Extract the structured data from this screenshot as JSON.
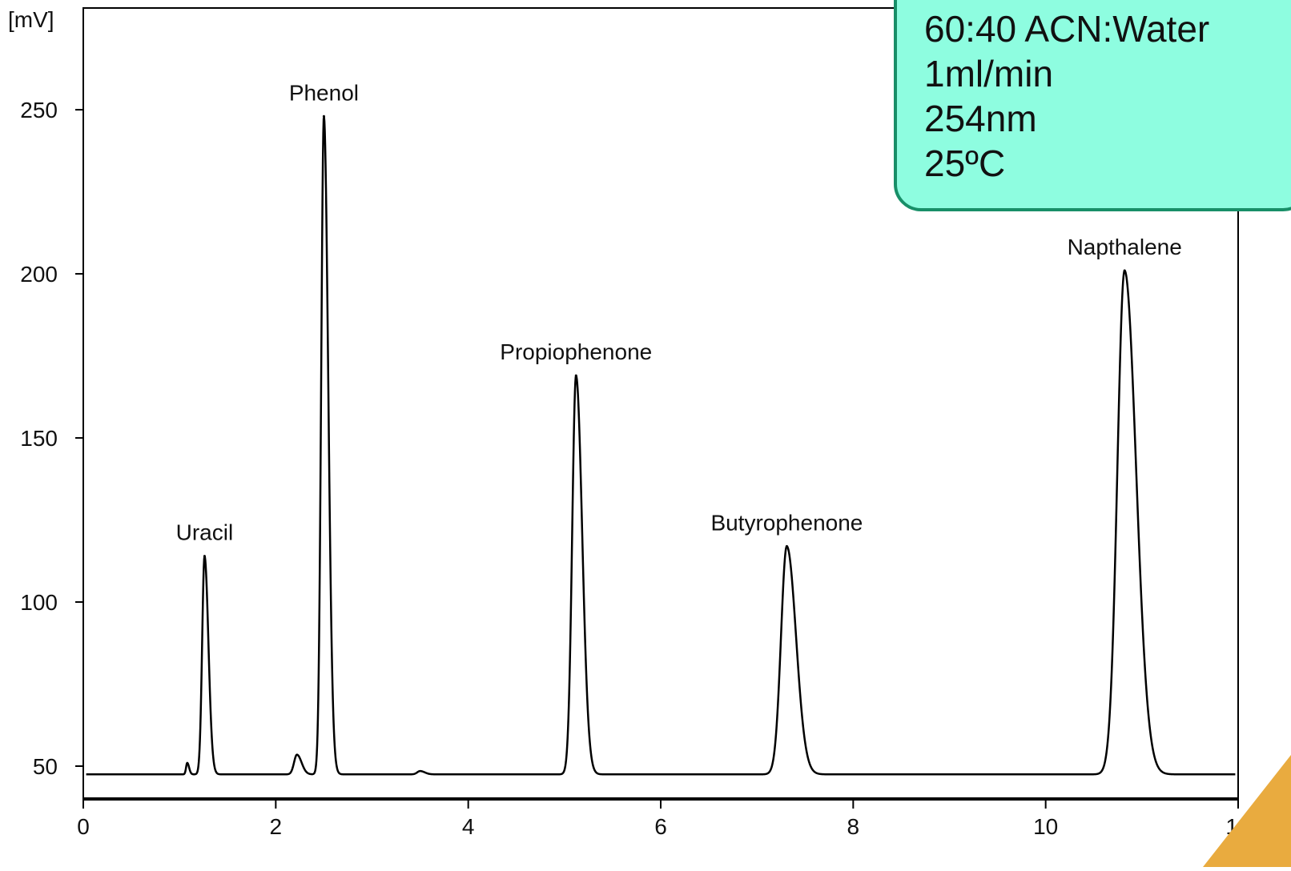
{
  "chart_data": {
    "type": "line",
    "y_unit_label": "[mV]",
    "xlim": [
      0,
      12
    ],
    "ylim": [
      40,
      281
    ],
    "x_ticks": [
      "0",
      "2",
      "4",
      "6",
      "8",
      "10",
      "12"
    ],
    "x_tick_values": [
      0,
      2,
      4,
      6,
      8,
      10,
      12
    ],
    "y_ticks": [
      "50",
      "100",
      "150",
      "200",
      "250"
    ],
    "y_tick_values": [
      50,
      100,
      150,
      200,
      250
    ],
    "baseline": 47.5,
    "grid": false,
    "peaks": [
      {
        "name": "Uracil",
        "x": 1.26,
        "height": 114,
        "width": 0.025
      },
      {
        "name": "Phenol",
        "x": 2.5,
        "height": 248,
        "width": 0.028
      },
      {
        "name": "Propiophenone",
        "x": 5.12,
        "height": 169,
        "width": 0.04
      },
      {
        "name": "Butyrophenone",
        "x": 7.31,
        "height": 117,
        "width": 0.06
      },
      {
        "name": "Napthalene",
        "x": 10.82,
        "height": 201,
        "width": 0.075
      }
    ],
    "minor_peaks": [
      {
        "x": 1.08,
        "height": 51,
        "width": 0.012
      },
      {
        "x": 2.22,
        "height": 53.5,
        "width": 0.03
      },
      {
        "x": 3.5,
        "height": 48.5,
        "width": 0.03
      }
    ]
  },
  "conditions": [
    "60:40 ACN:Water",
    "1ml/min",
    "254nm",
    "25ºC"
  ],
  "colors": {
    "info_box_fill": "#8efde0",
    "info_box_border": "#188f68",
    "trace": "#000000",
    "corner_accent": "#e9ab3f"
  }
}
